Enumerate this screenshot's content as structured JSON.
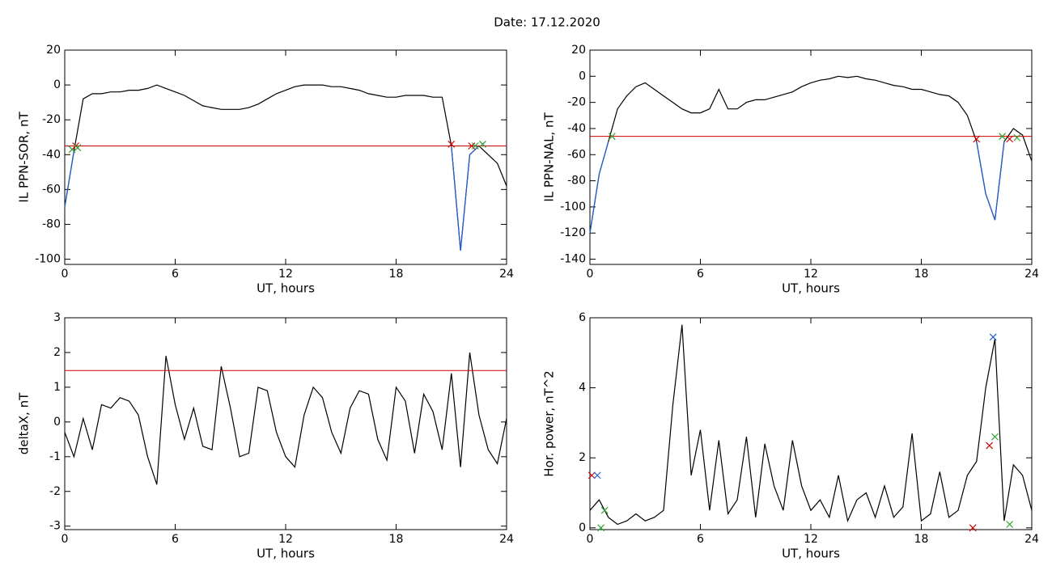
{
  "title": "Date:  17.12.2020",
  "chart_data": [
    {
      "type": "line",
      "xlabel": "UT, hours",
      "ylabel": "IL PPN-SOR, nT",
      "xlim": [
        0,
        24
      ],
      "xticks": [
        0,
        6,
        12,
        18,
        24
      ],
      "ylim": [
        -103,
        20
      ],
      "yticks": [
        -100,
        -80,
        -60,
        -40,
        -20,
        0,
        20
      ],
      "x": [
        0,
        0.5,
        1,
        1.5,
        2,
        2.5,
        3,
        3.5,
        4,
        4.5,
        5,
        5.5,
        6,
        6.5,
        7,
        7.5,
        8,
        8.5,
        9,
        9.5,
        10,
        10.5,
        11,
        11.5,
        12,
        12.5,
        13,
        13.5,
        14,
        14.5,
        15,
        15.5,
        16,
        16.5,
        17,
        17.5,
        18,
        18.5,
        19,
        19.5,
        20,
        20.5,
        21,
        21.5,
        22,
        22.5,
        23,
        23.5,
        24
      ],
      "series": [
        {
          "color": "#000000",
          "values": [
            -70,
            -38,
            -8,
            -5,
            -5,
            -4,
            -4,
            -3,
            -3,
            -2,
            0,
            -2,
            -4,
            -6,
            -9,
            -12,
            -13,
            -14,
            -14,
            -14,
            -13,
            -11,
            -8,
            -5,
            -3,
            -1,
            0,
            0,
            0,
            -1,
            -1,
            -2,
            -3,
            -5,
            -6,
            -7,
            -7,
            -6,
            -6,
            -6,
            -7,
            -7,
            -35,
            -95,
            -40,
            -35,
            -40,
            -45,
            -58
          ]
        },
        {
          "color": "#1f5fd6",
          "values": [
            -70,
            -38,
            null,
            null,
            null,
            null,
            null,
            null,
            null,
            null,
            null,
            null,
            null,
            null,
            null,
            null,
            null,
            null,
            null,
            null,
            null,
            null,
            null,
            null,
            null,
            null,
            null,
            null,
            null,
            null,
            null,
            null,
            null,
            null,
            null,
            null,
            null,
            null,
            null,
            null,
            null,
            null,
            -35,
            -95,
            -40,
            -35,
            null,
            null,
            null
          ]
        }
      ],
      "hline": -35,
      "hline_color": "#cc0000",
      "markers": [
        {
          "x": 0.4,
          "y": -37,
          "color": "#2ca02c"
        },
        {
          "x": 0.6,
          "y": -35,
          "color": "#cc0000"
        },
        {
          "x": 0.7,
          "y": -36,
          "color": "#2ca02c"
        },
        {
          "x": 21,
          "y": -34,
          "color": "#cc0000"
        },
        {
          "x": 22.1,
          "y": -35,
          "color": "#cc0000"
        },
        {
          "x": 22.3,
          "y": -35,
          "color": "#2ca02c"
        },
        {
          "x": 22.7,
          "y": -34,
          "color": "#2ca02c"
        }
      ]
    },
    {
      "type": "line",
      "xlabel": "UT, hours",
      "ylabel": "IL PPN-NAL, nT",
      "xlim": [
        0,
        24
      ],
      "xticks": [
        0,
        6,
        12,
        18,
        24
      ],
      "ylim": [
        -144,
        20
      ],
      "yticks": [
        -140,
        -120,
        -100,
        -80,
        -60,
        -40,
        -20,
        0,
        20
      ],
      "x": [
        0,
        0.5,
        1,
        1.5,
        2,
        2.5,
        3,
        3.5,
        4,
        4.5,
        5,
        5.5,
        6,
        6.5,
        7,
        7.5,
        8,
        8.5,
        9,
        9.5,
        10,
        10.5,
        11,
        11.5,
        12,
        12.5,
        13,
        13.5,
        14,
        14.5,
        15,
        15.5,
        16,
        16.5,
        17,
        17.5,
        18,
        18.5,
        19,
        19.5,
        20,
        20.5,
        21,
        21.5,
        22,
        22.5,
        23,
        23.5,
        24
      ],
      "series": [
        {
          "color": "#000000",
          "values": [
            -120,
            -75,
            -50,
            -25,
            -15,
            -8,
            -5,
            -10,
            -15,
            -20,
            -25,
            -28,
            -28,
            -25,
            -10,
            -25,
            -25,
            -20,
            -18,
            -18,
            -16,
            -14,
            -12,
            -8,
            -5,
            -3,
            -2,
            0,
            -1,
            0,
            -2,
            -3,
            -5,
            -7,
            -8,
            -10,
            -10,
            -12,
            -14,
            -15,
            -20,
            -30,
            -50,
            -90,
            -110,
            -50,
            -40,
            -45,
            -65
          ]
        },
        {
          "color": "#1f5fd6",
          "values": [
            -120,
            -75,
            -50,
            null,
            null,
            null,
            null,
            null,
            null,
            null,
            null,
            null,
            null,
            null,
            null,
            null,
            null,
            null,
            null,
            null,
            null,
            null,
            null,
            null,
            null,
            null,
            null,
            null,
            null,
            null,
            null,
            null,
            null,
            null,
            null,
            null,
            null,
            null,
            null,
            null,
            null,
            null,
            -50,
            -90,
            -110,
            -50,
            null,
            null,
            null
          ]
        }
      ],
      "hline": -46,
      "hline_color": "#cc0000",
      "markers": [
        {
          "x": 1.2,
          "y": -46,
          "color": "#2ca02c"
        },
        {
          "x": 21,
          "y": -48,
          "color": "#cc0000"
        },
        {
          "x": 22.4,
          "y": -46,
          "color": "#2ca02c"
        },
        {
          "x": 22.8,
          "y": -48,
          "color": "#cc0000"
        },
        {
          "x": 23.2,
          "y": -47,
          "color": "#2ca02c"
        }
      ]
    },
    {
      "type": "line",
      "xlabel": "UT, hours",
      "ylabel": "deltaX, nT",
      "xlim": [
        0,
        24
      ],
      "xticks": [
        0,
        6,
        12,
        18,
        24
      ],
      "ylim": [
        -3.1,
        3
      ],
      "yticks": [
        -3,
        -2,
        -1,
        0,
        1,
        2,
        3
      ],
      "x": [
        0,
        0.5,
        1,
        1.5,
        2,
        2.5,
        3,
        3.5,
        4,
        4.5,
        5,
        5.5,
        6,
        6.5,
        7,
        7.5,
        8,
        8.5,
        9,
        9.5,
        10,
        10.5,
        11,
        11.5,
        12,
        12.5,
        13,
        13.5,
        14,
        14.5,
        15,
        15.5,
        16,
        16.5,
        17,
        17.5,
        18,
        18.5,
        19,
        19.5,
        20,
        20.5,
        21,
        21.5,
        22,
        22.5,
        23,
        23.5,
        24
      ],
      "series": [
        {
          "color": "#000000",
          "values": [
            -0.3,
            -1,
            0.1,
            -0.8,
            0.5,
            0.4,
            0.7,
            0.6,
            0.2,
            -1,
            -1.8,
            1.9,
            0.5,
            -0.5,
            0.4,
            -0.7,
            -0.8,
            1.6,
            0.4,
            -1,
            -0.9,
            1,
            0.9,
            -0.3,
            -1,
            -1.3,
            0.2,
            1,
            0.7,
            -0.3,
            -0.9,
            0.4,
            0.9,
            0.8,
            -0.5,
            -1.1,
            1,
            0.6,
            -0.9,
            0.8,
            0.3,
            -0.8,
            1.4,
            -1.3,
            2,
            0.2,
            -0.8,
            -1.2,
            0.1
          ]
        }
      ],
      "hline": 1.48,
      "hline_color": "#cc0000",
      "markers": []
    },
    {
      "type": "line",
      "xlabel": "UT, hours",
      "ylabel": "Hor. power, nT^2",
      "xlim": [
        0,
        24
      ],
      "xticks": [
        0,
        6,
        12,
        18,
        24
      ],
      "ylim": [
        -0.05,
        6
      ],
      "yticks": [
        0,
        2,
        4,
        6
      ],
      "x": [
        0,
        0.5,
        1,
        1.5,
        2,
        2.5,
        3,
        3.5,
        4,
        4.5,
        5,
        5.5,
        6,
        6.5,
        7,
        7.5,
        8,
        8.5,
        9,
        9.5,
        10,
        10.5,
        11,
        11.5,
        12,
        12.5,
        13,
        13.5,
        14,
        14.5,
        15,
        15.5,
        16,
        16.5,
        17,
        17.5,
        18,
        18.5,
        19,
        19.5,
        20,
        20.5,
        21,
        21.5,
        22,
        22.5,
        23,
        23.5,
        24
      ],
      "series": [
        {
          "color": "#000000",
          "values": [
            0.5,
            0.8,
            0.3,
            0.1,
            0.2,
            0.4,
            0.2,
            0.3,
            0.5,
            3.5,
            5.8,
            1.5,
            2.8,
            0.5,
            2.5,
            0.4,
            0.8,
            2.6,
            0.3,
            2.4,
            1.2,
            0.5,
            2.5,
            1.2,
            0.5,
            0.8,
            0.3,
            1.5,
            0.2,
            0.8,
            1,
            0.3,
            1.2,
            0.3,
            0.6,
            2.7,
            0.2,
            0.4,
            1.6,
            0.3,
            0.5,
            1.5,
            1.9,
            4,
            5.4,
            0.2,
            1.8,
            1.5,
            0.5
          ]
        }
      ],
      "markers": [
        {
          "x": 0.1,
          "y": 1.5,
          "color": "#cc0000"
        },
        {
          "x": 0.4,
          "y": 1.5,
          "color": "#1f5fd6"
        },
        {
          "x": 0.6,
          "y": 0,
          "color": "#2ca02c"
        },
        {
          "x": 0.8,
          "y": 0.5,
          "color": "#2ca02c"
        },
        {
          "x": 20.8,
          "y": 0,
          "color": "#cc0000"
        },
        {
          "x": 21.7,
          "y": 2.35,
          "color": "#cc0000"
        },
        {
          "x": 21.9,
          "y": 5.45,
          "color": "#1f5fd6"
        },
        {
          "x": 22,
          "y": 2.6,
          "color": "#2ca02c"
        },
        {
          "x": 22.8,
          "y": 0.1,
          "color": "#2ca02c"
        }
      ]
    }
  ]
}
